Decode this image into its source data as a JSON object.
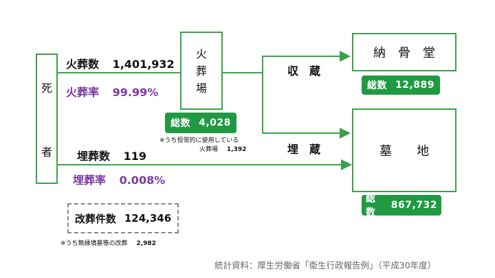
{
  "death": {
    "chars": [
      "死",
      "者"
    ]
  },
  "cremation": {
    "count_label": "火葬数",
    "count_value": "1,401,932",
    "rate_label": "火葬率",
    "rate_value": "99.99%"
  },
  "crematorium": {
    "chars": [
      "火",
      "葬",
      "場"
    ],
    "total_label": "総数",
    "total_value": "4,028",
    "note_line1": "※うち恒常的に使用している",
    "note_line2_label": "火葬場",
    "note_line2_value": "1,392"
  },
  "burial": {
    "count_label": "埋葬数",
    "count_value": "119",
    "rate_label": "埋葬率",
    "rate_value": "0.008%"
  },
  "ossuary": {
    "route_label": "収　蔵",
    "title": "納　骨　堂",
    "total_label": "総数",
    "total_value": "12,889"
  },
  "cemetery": {
    "route_label": "埋　蔵",
    "title": "墓　　地",
    "total_label": "総数",
    "total_value": "867,732"
  },
  "reburial": {
    "label": "改葬件数",
    "value": "124,346",
    "note_label": "※うち無縁墳墓等の改葬",
    "note_value": "2,982"
  },
  "source": "統計資料：厚生労働省「衛生行政報告例」（平成30年度）",
  "colors": {
    "green": "#3aa14b",
    "badge": "#1f9a42",
    "purple": "#7b3aa1",
    "dashed": "#888888"
  }
}
